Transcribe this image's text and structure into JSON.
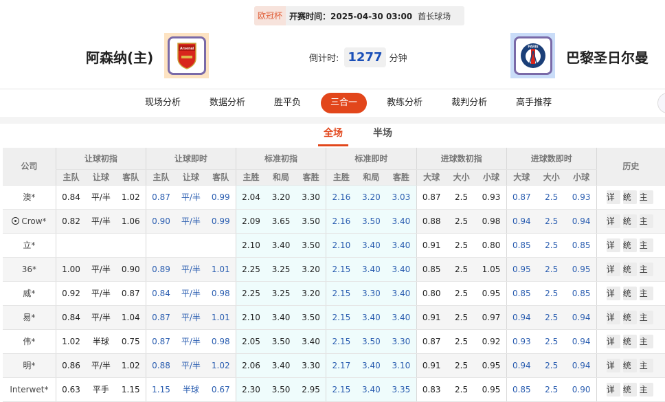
{
  "match": {
    "league": "欧冠杯",
    "time": "开赛时间：2025-04-30 03:00",
    "venue": "酋长球场",
    "home": "阿森纳(主)",
    "away": "巴黎圣日尔曼",
    "home_logo_text": "Arsenal",
    "away_logo_text": "PARIS",
    "countdown_label": "倒计时:",
    "countdown_value": "1277",
    "countdown_unit": "分钟"
  },
  "nav": [
    "现场分析",
    "数据分析",
    "胜平负",
    "三合一",
    "教练分析",
    "裁判分析",
    "高手推荐"
  ],
  "nav_active": 3,
  "tabs": [
    "全场",
    "半场"
  ],
  "tab_active": 0,
  "table": {
    "company_header": "公司",
    "groups": [
      "让球初指",
      "让球即时",
      "标准初指",
      "标准即时",
      "进球数初指",
      "进球数即时",
      "历史"
    ],
    "subheaders": [
      [
        "主队",
        "让球",
        "客队"
      ],
      [
        "主队",
        "让球",
        "客队"
      ],
      [
        "主胜",
        "和局",
        "客胜"
      ],
      [
        "主胜",
        "和局",
        "客胜"
      ],
      [
        "大球",
        "大小",
        "小球"
      ],
      [
        "大球",
        "大小",
        "小球"
      ]
    ],
    "actions": [
      "详",
      "统",
      "主"
    ],
    "rows": [
      {
        "company": "澳*",
        "icon": false,
        "v": [
          "0.84",
          "平/半",
          "1.02",
          "0.87",
          "平/半",
          "0.99",
          "2.04",
          "3.20",
          "3.30",
          "2.16",
          "3.20",
          "3.03",
          "0.87",
          "2.5",
          "0.93",
          "0.87",
          "2.5",
          "0.93"
        ]
      },
      {
        "company": "Crow*",
        "icon": true,
        "v": [
          "0.82",
          "平/半",
          "1.06",
          "0.90",
          "平/半",
          "0.99",
          "2.09",
          "3.65",
          "3.50",
          "2.16",
          "3.50",
          "3.40",
          "0.88",
          "2.5",
          "0.98",
          "0.94",
          "2.5",
          "0.94"
        ]
      },
      {
        "company": "立*",
        "icon": false,
        "v": [
          "",
          "",
          "",
          "",
          "",
          "",
          "2.10",
          "3.40",
          "3.50",
          "2.10",
          "3.40",
          "3.40",
          "0.91",
          "2.5",
          "0.80",
          "0.85",
          "2.5",
          "0.85"
        ]
      },
      {
        "company": "36*",
        "icon": false,
        "v": [
          "1.00",
          "平/半",
          "0.90",
          "0.89",
          "平/半",
          "1.01",
          "2.25",
          "3.25",
          "3.20",
          "2.15",
          "3.40",
          "3.40",
          "0.85",
          "2.5",
          "1.05",
          "0.95",
          "2.5",
          "0.95"
        ]
      },
      {
        "company": "威*",
        "icon": false,
        "v": [
          "0.92",
          "平/半",
          "0.87",
          "0.84",
          "平/半",
          "0.98",
          "2.25",
          "3.25",
          "3.20",
          "2.15",
          "3.30",
          "3.40",
          "0.80",
          "2.5",
          "0.95",
          "0.85",
          "2.5",
          "0.85"
        ]
      },
      {
        "company": "易*",
        "icon": false,
        "v": [
          "0.84",
          "平/半",
          "1.04",
          "0.87",
          "平/半",
          "1.01",
          "2.10",
          "3.40",
          "3.50",
          "2.15",
          "3.40",
          "3.40",
          "0.91",
          "2.5",
          "0.97",
          "0.94",
          "2.5",
          "0.94"
        ]
      },
      {
        "company": "伟*",
        "icon": false,
        "v": [
          "1.02",
          "半球",
          "0.75",
          "0.87",
          "平/半",
          "0.98",
          "2.05",
          "3.50",
          "3.40",
          "2.15",
          "3.50",
          "3.30",
          "0.87",
          "2.5",
          "0.92",
          "0.93",
          "2.5",
          "0.94"
        ]
      },
      {
        "company": "明*",
        "icon": false,
        "v": [
          "0.86",
          "平/半",
          "1.02",
          "0.88",
          "平/半",
          "1.02",
          "2.06",
          "3.40",
          "3.30",
          "2.17",
          "3.40",
          "3.10",
          "0.91",
          "2.5",
          "0.95",
          "0.94",
          "2.5",
          "0.94"
        ]
      },
      {
        "company": "Interwet*",
        "icon": false,
        "v": [
          "0.63",
          "平手",
          "1.15",
          "1.15",
          "半球",
          "0.67",
          "2.30",
          "3.50",
          "2.95",
          "2.15",
          "3.40",
          "3.35",
          "0.83",
          "2.5",
          "0.95",
          "0.85",
          "2.5",
          "0.90"
        ]
      }
    ]
  },
  "colors": {
    "accent": "#e2461b",
    "blue": "#2a5db0",
    "countdown": "#1a4fb8"
  }
}
